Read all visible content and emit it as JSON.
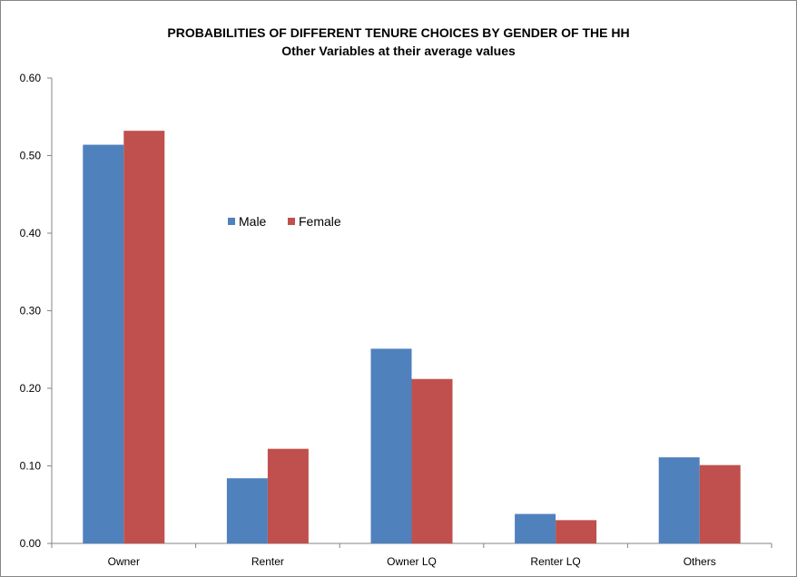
{
  "chart_data": {
    "type": "bar",
    "title": "PROBABILITIES OF DIFFERENT TENURE CHOICES BY GENDER OF THE HH",
    "subtitle": "Other Variables at their average values",
    "categories": [
      "Owner",
      "Renter",
      "Owner LQ",
      "Renter LQ",
      "Others"
    ],
    "series": [
      {
        "name": "Male",
        "color": "#4f81bd",
        "values": [
          0.514,
          0.084,
          0.251,
          0.038,
          0.111
        ]
      },
      {
        "name": "Female",
        "color": "#c0504d",
        "values": [
          0.532,
          0.122,
          0.212,
          0.03,
          0.101
        ]
      }
    ],
    "ylim": [
      0,
      0.6
    ],
    "yticks": [
      "0.00",
      "0.10",
      "0.20",
      "0.30",
      "0.40",
      "0.50",
      "0.60"
    ],
    "grid": false,
    "legend": "center"
  }
}
